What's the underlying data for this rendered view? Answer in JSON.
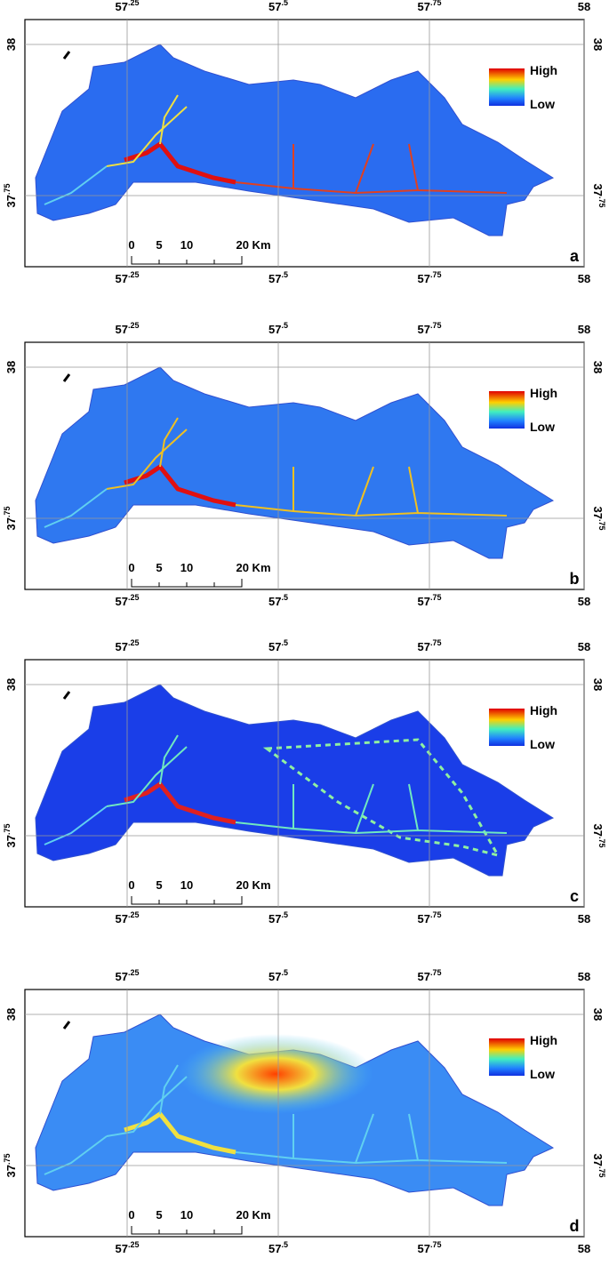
{
  "x_ticks": [
    {
      "base": "57",
      "sup": ".25"
    },
    {
      "base": "57",
      "sup": ".5"
    },
    {
      "base": "57",
      "sup": ".75"
    },
    {
      "base": "58"
    }
  ],
  "y_ticks": [
    {
      "base": "38"
    },
    {
      "base": "37",
      "sup": ".75"
    }
  ],
  "legend": {
    "high": "High",
    "low": "Low"
  },
  "scale_bar": [
    "0",
    "5",
    "10",
    "20 Km"
  ],
  "panels": [
    {
      "label": "a"
    },
    {
      "label": "b"
    },
    {
      "label": "c"
    },
    {
      "label": "d"
    }
  ]
}
